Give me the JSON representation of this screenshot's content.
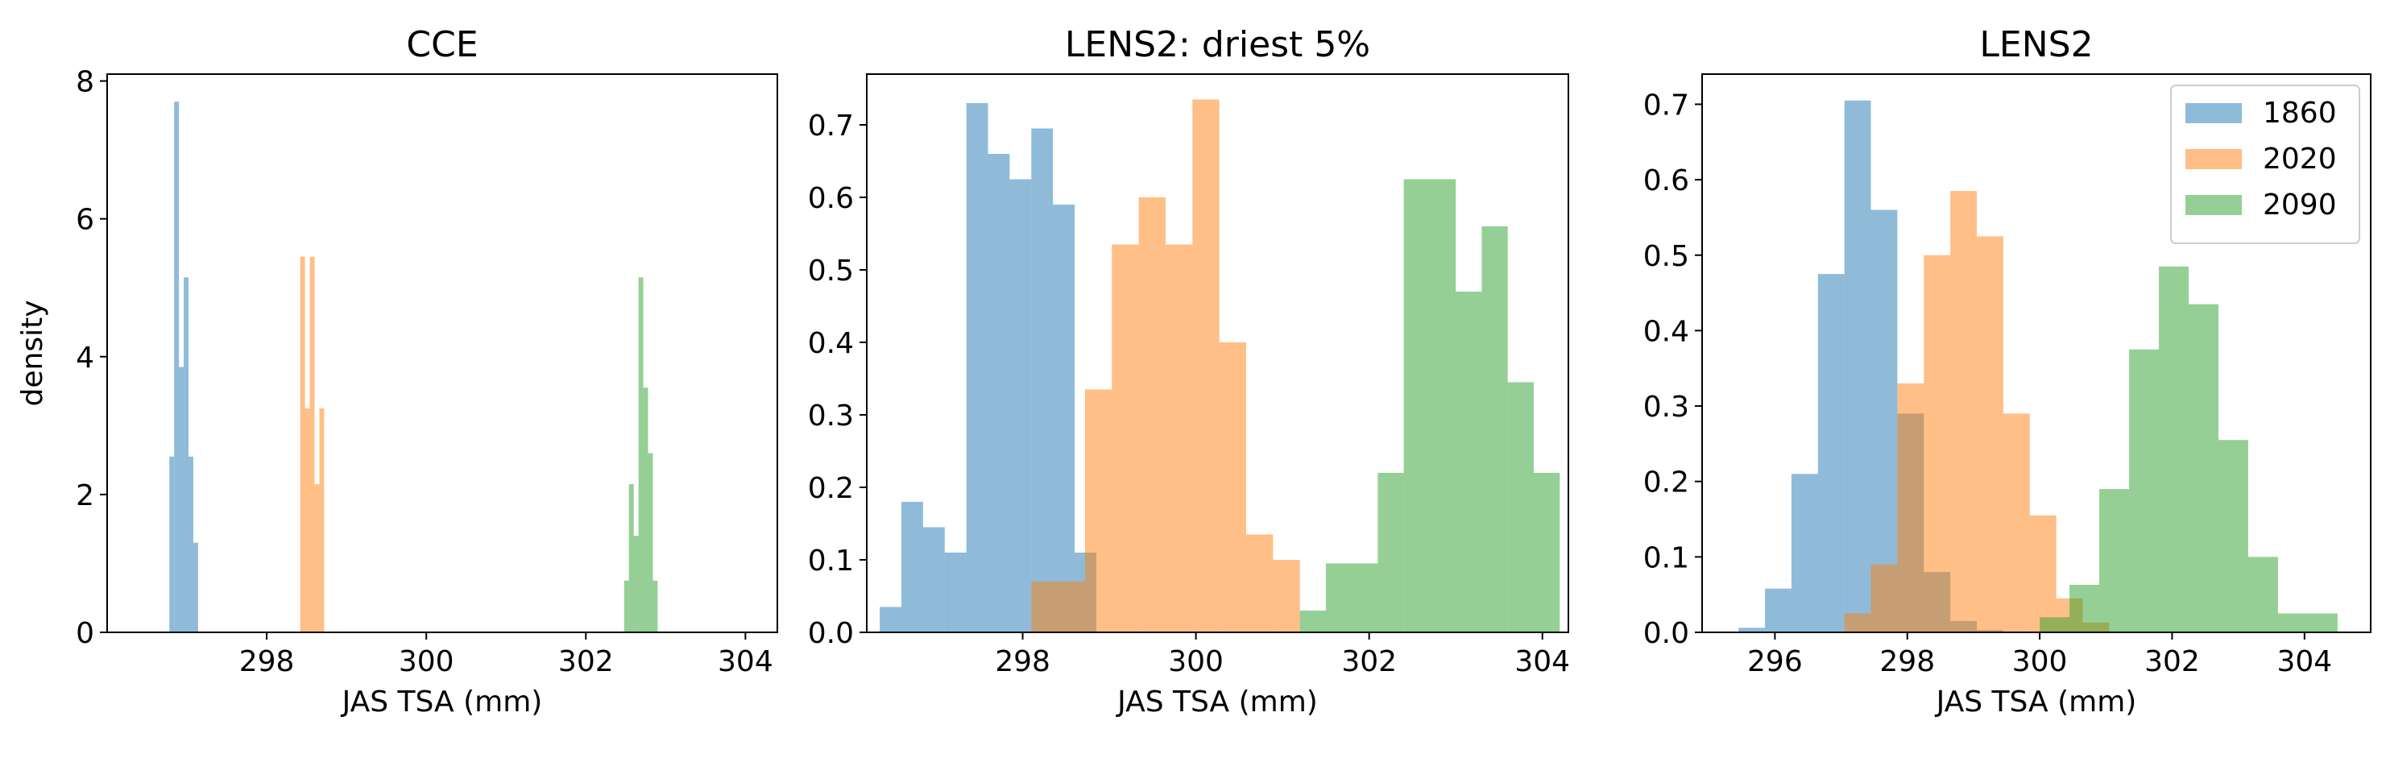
{
  "chart_data": [
    {
      "type": "histogram",
      "title": "CCE",
      "xlabel": "JAS TSA (mm)",
      "ylabel": "density",
      "xlim": [
        296.0,
        304.4
      ],
      "ylim": [
        0,
        8.1
      ],
      "xticks": [
        298,
        300,
        302,
        304
      ],
      "yticks": [
        0,
        2,
        4,
        6,
        8
      ],
      "series": [
        {
          "color": "#1f77b4",
          "bins": [
            {
              "x0": 296.78,
              "x1": 296.84,
              "density": 2.55
            },
            {
              "x0": 296.84,
              "x1": 296.9,
              "density": 7.7
            },
            {
              "x0": 296.9,
              "x1": 296.96,
              "density": 3.85
            },
            {
              "x0": 296.96,
              "x1": 297.02,
              "density": 5.15
            },
            {
              "x0": 297.02,
              "x1": 297.08,
              "density": 2.55
            },
            {
              "x0": 297.08,
              "x1": 297.14,
              "density": 1.3
            }
          ]
        },
        {
          "color": "#ff7f0e",
          "bins": [
            {
              "x0": 298.42,
              "x1": 298.48,
              "density": 5.45
            },
            {
              "x0": 298.48,
              "x1": 298.54,
              "density": 3.25
            },
            {
              "x0": 298.54,
              "x1": 298.6,
              "density": 5.45
            },
            {
              "x0": 298.6,
              "x1": 298.66,
              "density": 2.15
            },
            {
              "x0": 298.66,
              "x1": 298.72,
              "density": 3.25
            }
          ]
        },
        {
          "color": "#2ca02c",
          "bins": [
            {
              "x0": 302.48,
              "x1": 302.54,
              "density": 0.75
            },
            {
              "x0": 302.54,
              "x1": 302.6,
              "density": 2.15
            },
            {
              "x0": 302.6,
              "x1": 302.66,
              "density": 1.4
            },
            {
              "x0": 302.66,
              "x1": 302.72,
              "density": 5.15
            },
            {
              "x0": 302.72,
              "x1": 302.78,
              "density": 3.55
            },
            {
              "x0": 302.78,
              "x1": 302.84,
              "density": 2.6
            },
            {
              "x0": 302.84,
              "x1": 302.9,
              "density": 0.75
            }
          ]
        }
      ]
    },
    {
      "type": "histogram",
      "title": "LENS2: driest 5%",
      "xlabel": "JAS TSA (mm)",
      "ylabel": "",
      "xlim": [
        296.2,
        304.3
      ],
      "ylim": [
        0,
        0.77
      ],
      "xticks": [
        298,
        300,
        302,
        304
      ],
      "yticks": [
        0.0,
        0.1,
        0.2,
        0.3,
        0.4,
        0.5,
        0.6,
        0.7
      ],
      "series": [
        {
          "color": "#1f77b4",
          "bins": [
            {
              "x0": 296.35,
              "x1": 296.6,
              "density": 0.035
            },
            {
              "x0": 296.6,
              "x1": 296.85,
              "density": 0.18
            },
            {
              "x0": 296.85,
              "x1": 297.1,
              "density": 0.145
            },
            {
              "x0": 297.1,
              "x1": 297.35,
              "density": 0.11
            },
            {
              "x0": 297.35,
              "x1": 297.6,
              "density": 0.73
            },
            {
              "x0": 297.6,
              "x1": 297.85,
              "density": 0.66
            },
            {
              "x0": 297.85,
              "x1": 298.1,
              "density": 0.625
            },
            {
              "x0": 298.1,
              "x1": 298.35,
              "density": 0.695
            },
            {
              "x0": 298.35,
              "x1": 298.6,
              "density": 0.59
            },
            {
              "x0": 298.6,
              "x1": 298.85,
              "density": 0.11
            }
          ]
        },
        {
          "color": "#ff7f0e",
          "bins": [
            {
              "x0": 298.1,
              "x1": 298.41,
              "density": 0.07
            },
            {
              "x0": 298.41,
              "x1": 298.72,
              "density": 0.07
            },
            {
              "x0": 298.72,
              "x1": 299.03,
              "density": 0.335
            },
            {
              "x0": 299.03,
              "x1": 299.34,
              "density": 0.535
            },
            {
              "x0": 299.34,
              "x1": 299.65,
              "density": 0.6
            },
            {
              "x0": 299.65,
              "x1": 299.96,
              "density": 0.535
            },
            {
              "x0": 299.96,
              "x1": 300.27,
              "density": 0.735
            },
            {
              "x0": 300.27,
              "x1": 300.58,
              "density": 0.4
            },
            {
              "x0": 300.58,
              "x1": 300.89,
              "density": 0.135
            },
            {
              "x0": 300.89,
              "x1": 301.2,
              "density": 0.1
            }
          ]
        },
        {
          "color": "#2ca02c",
          "bins": [
            {
              "x0": 301.2,
              "x1": 301.5,
              "density": 0.03
            },
            {
              "x0": 301.5,
              "x1": 301.8,
              "density": 0.095
            },
            {
              "x0": 301.8,
              "x1": 302.1,
              "density": 0.095
            },
            {
              "x0": 302.1,
              "x1": 302.4,
              "density": 0.22
            },
            {
              "x0": 302.4,
              "x1": 302.7,
              "density": 0.625
            },
            {
              "x0": 302.7,
              "x1": 303.0,
              "density": 0.625
            },
            {
              "x0": 303.0,
              "x1": 303.3,
              "density": 0.47
            },
            {
              "x0": 303.3,
              "x1": 303.6,
              "density": 0.56
            },
            {
              "x0": 303.6,
              "x1": 303.9,
              "density": 0.345
            },
            {
              "x0": 303.9,
              "x1": 304.2,
              "density": 0.22
            }
          ]
        }
      ]
    },
    {
      "type": "histogram",
      "title": "LENS2",
      "xlabel": "JAS TSA (mm)",
      "ylabel": "",
      "xlim": [
        294.9,
        305.0
      ],
      "ylim": [
        0,
        0.74
      ],
      "xticks": [
        296,
        298,
        300,
        302,
        304
      ],
      "yticks": [
        0.0,
        0.1,
        0.2,
        0.3,
        0.4,
        0.5,
        0.6,
        0.7
      ],
      "legend": {
        "position": "top-right",
        "entries": [
          "1860",
          "2020",
          "2090"
        ]
      },
      "series": [
        {
          "name": "1860",
          "color": "#1f77b4",
          "bins": [
            {
              "x0": 295.45,
              "x1": 295.85,
              "density": 0.006
            },
            {
              "x0": 295.85,
              "x1": 296.25,
              "density": 0.058
            },
            {
              "x0": 296.25,
              "x1": 296.65,
              "density": 0.21
            },
            {
              "x0": 296.65,
              "x1": 297.05,
              "density": 0.475
            },
            {
              "x0": 297.05,
              "x1": 297.45,
              "density": 0.705
            },
            {
              "x0": 297.45,
              "x1": 297.85,
              "density": 0.56
            },
            {
              "x0": 297.85,
              "x1": 298.25,
              "density": 0.29
            },
            {
              "x0": 298.25,
              "x1": 298.65,
              "density": 0.08
            },
            {
              "x0": 298.65,
              "x1": 299.05,
              "density": 0.015
            },
            {
              "x0": 299.05,
              "x1": 299.45,
              "density": 0.003
            }
          ]
        },
        {
          "name": "2020",
          "color": "#ff7f0e",
          "bins": [
            {
              "x0": 297.05,
              "x1": 297.45,
              "density": 0.025
            },
            {
              "x0": 297.45,
              "x1": 297.85,
              "density": 0.09
            },
            {
              "x0": 297.85,
              "x1": 298.25,
              "density": 0.33
            },
            {
              "x0": 298.25,
              "x1": 298.65,
              "density": 0.5
            },
            {
              "x0": 298.65,
              "x1": 299.05,
              "density": 0.585
            },
            {
              "x0": 299.05,
              "x1": 299.45,
              "density": 0.525
            },
            {
              "x0": 299.45,
              "x1": 299.85,
              "density": 0.29
            },
            {
              "x0": 299.85,
              "x1": 300.25,
              "density": 0.155
            },
            {
              "x0": 300.25,
              "x1": 300.65,
              "density": 0.045
            },
            {
              "x0": 300.65,
              "x1": 301.05,
              "density": 0.013
            }
          ]
        },
        {
          "name": "2090",
          "color": "#2ca02c",
          "bins": [
            {
              "x0": 300.0,
              "x1": 300.45,
              "density": 0.02
            },
            {
              "x0": 300.45,
              "x1": 300.9,
              "density": 0.063
            },
            {
              "x0": 300.9,
              "x1": 301.35,
              "density": 0.19
            },
            {
              "x0": 301.35,
              "x1": 301.8,
              "density": 0.375
            },
            {
              "x0": 301.8,
              "x1": 302.25,
              "density": 0.485
            },
            {
              "x0": 302.25,
              "x1": 302.7,
              "density": 0.435
            },
            {
              "x0": 302.7,
              "x1": 303.15,
              "density": 0.255
            },
            {
              "x0": 303.15,
              "x1": 303.6,
              "density": 0.1
            },
            {
              "x0": 303.6,
              "x1": 304.05,
              "density": 0.025
            },
            {
              "x0": 304.05,
              "x1": 304.5,
              "density": 0.025
            }
          ]
        }
      ]
    }
  ]
}
